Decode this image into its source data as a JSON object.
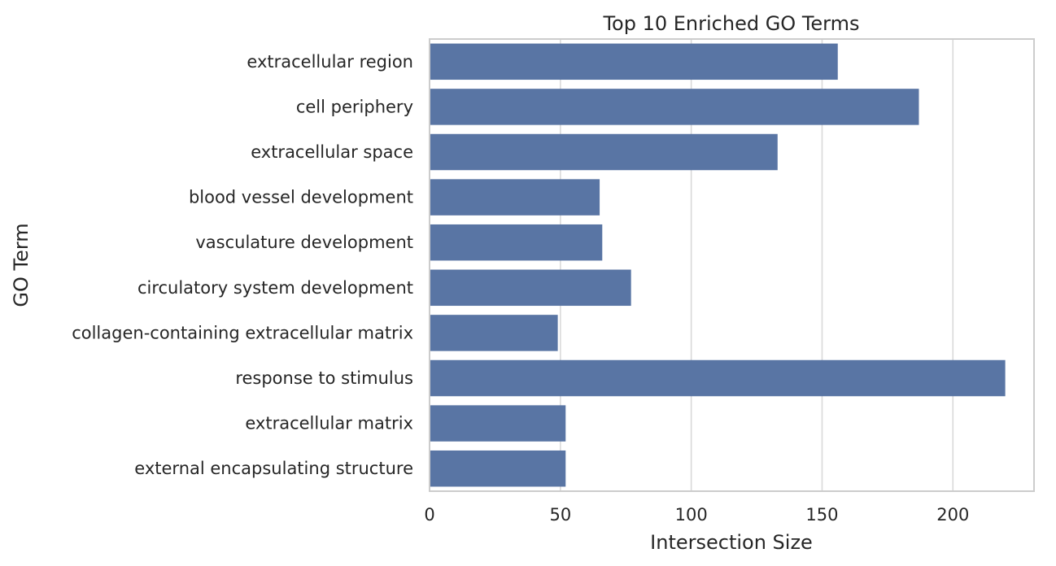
{
  "chart_data": {
    "type": "bar",
    "orientation": "horizontal",
    "title": "Top 10 Enriched GO Terms",
    "xlabel": "Intersection Size",
    "ylabel": "GO Term",
    "categories": [
      "extracellular region",
      "cell periphery",
      "extracellular space",
      "blood vessel development",
      "vasculature development",
      "circulatory system development",
      "collagen-containing extracellular matrix",
      "response to stimulus",
      "extracellular matrix",
      "external encapsulating structure"
    ],
    "values": [
      156,
      187,
      133,
      65,
      66,
      77,
      49,
      220,
      52,
      52
    ],
    "xlim": [
      0,
      231
    ],
    "xticks": [
      0,
      50,
      100,
      150,
      200
    ],
    "grid": true,
    "bar_color": "#5975a4"
  }
}
